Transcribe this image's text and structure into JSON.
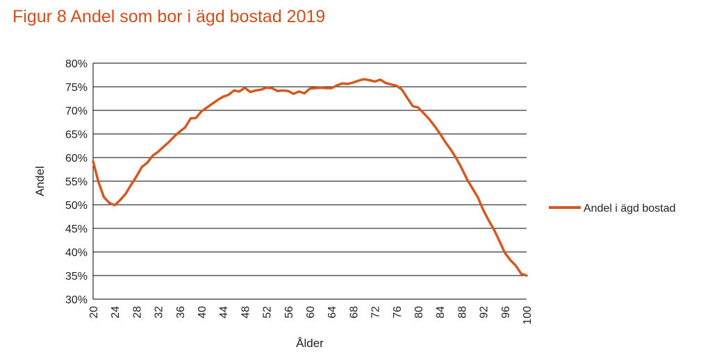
{
  "figure_title": "Figur 8 Andel som bor i ägd bostad 2019",
  "chart_data": {
    "type": "line",
    "title": "Figur 8 Andel som bor i ägd bostad 2019",
    "xlabel": "Ålder",
    "ylabel": "Andel",
    "xlim": [
      20,
      100
    ],
    "ylim": [
      30,
      80
    ],
    "y_unit": "%",
    "x_ticks": [
      20,
      24,
      28,
      32,
      36,
      40,
      44,
      48,
      52,
      56,
      60,
      64,
      68,
      72,
      76,
      80,
      84,
      88,
      92,
      96,
      100
    ],
    "y_ticks": [
      30,
      35,
      40,
      45,
      50,
      55,
      60,
      65,
      70,
      75,
      80
    ],
    "y_tick_labels": [
      "30%",
      "35%",
      "40%",
      "45%",
      "50%",
      "55%",
      "60%",
      "65%",
      "70%",
      "75%",
      "80%"
    ],
    "grid": "horizontal",
    "legend_position": "right",
    "series": [
      {
        "name": "Andel i ägd bostad",
        "color": "#d4581f",
        "x": [
          20,
          21,
          22,
          23,
          24,
          25,
          26,
          27,
          28,
          29,
          30,
          31,
          32,
          33,
          34,
          35,
          36,
          37,
          38,
          39,
          40,
          41,
          42,
          43,
          44,
          45,
          46,
          47,
          48,
          49,
          50,
          51,
          52,
          53,
          54,
          55,
          56,
          57,
          58,
          59,
          60,
          61,
          62,
          63,
          64,
          65,
          66,
          67,
          68,
          69,
          70,
          71,
          72,
          73,
          74,
          75,
          76,
          77,
          78,
          79,
          80,
          81,
          82,
          83,
          84,
          85,
          86,
          87,
          88,
          89,
          90,
          91,
          92,
          93,
          94,
          95,
          96,
          97,
          98,
          99,
          100
        ],
        "y": [
          59.2,
          54.8,
          51.6,
          50.4,
          49.9,
          51.0,
          52.3,
          54.2,
          56.0,
          58.0,
          58.9,
          60.4,
          61.2,
          62.3,
          63.3,
          64.5,
          65.5,
          66.4,
          68.3,
          68.4,
          69.8,
          70.6,
          71.4,
          72.2,
          72.9,
          73.3,
          74.2,
          74.0,
          74.8,
          73.9,
          74.2,
          74.4,
          74.8,
          74.7,
          74.1,
          74.2,
          74.1,
          73.5,
          74.0,
          73.6,
          74.6,
          74.7,
          74.8,
          74.7,
          74.7,
          75.3,
          75.7,
          75.6,
          75.9,
          76.3,
          76.6,
          76.4,
          76.1,
          76.5,
          75.8,
          75.5,
          75.2,
          74.4,
          72.6,
          70.9,
          70.6,
          69.4,
          68.2,
          66.7,
          65.1,
          63.3,
          61.7,
          59.9,
          57.8,
          55.4,
          53.5,
          51.6,
          48.9,
          46.7,
          44.7,
          42.3,
          39.8,
          38.3,
          37.1,
          35.4,
          35.0
        ]
      }
    ]
  }
}
